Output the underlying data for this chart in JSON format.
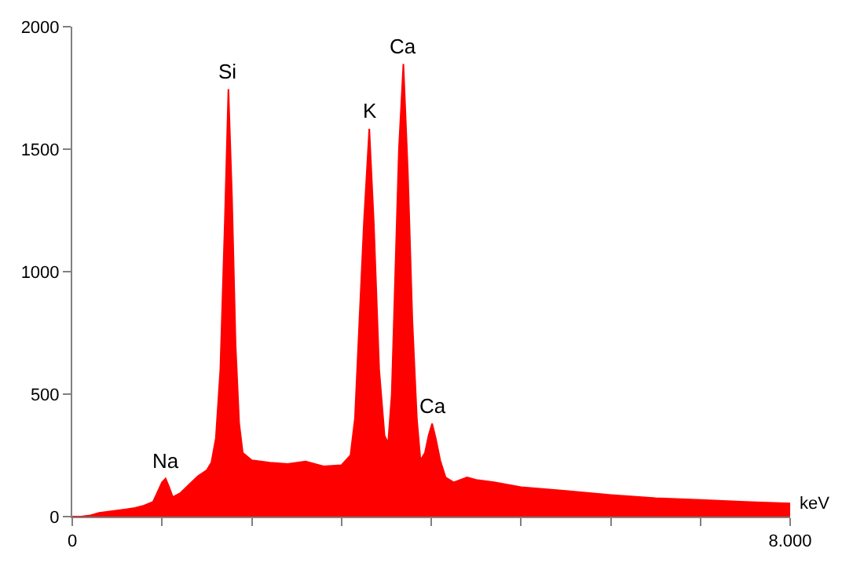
{
  "chart_data": {
    "type": "area",
    "xlabel": "keV",
    "x": [
      0,
      0.1,
      0.2,
      0.3,
      0.4,
      0.5,
      0.6,
      0.7,
      0.8,
      0.9,
      0.95,
      1.0,
      1.04,
      1.08,
      1.12,
      1.2,
      1.3,
      1.4,
      1.5,
      1.55,
      1.6,
      1.65,
      1.7,
      1.74,
      1.78,
      1.82,
      1.86,
      1.9,
      2.0,
      2.2,
      2.4,
      2.6,
      2.8,
      3.0,
      3.1,
      3.15,
      3.2,
      3.25,
      3.31,
      3.36,
      3.42,
      3.48,
      3.52,
      3.56,
      3.6,
      3.64,
      3.69,
      3.74,
      3.79,
      3.84,
      3.88,
      3.93,
      3.97,
      4.01,
      4.05,
      4.1,
      4.16,
      4.25,
      4.4,
      4.5,
      4.7,
      5.0,
      5.5,
      6.0,
      6.5,
      7.0,
      7.5,
      8.0
    ],
    "series": [
      {
        "color": "#ff0000",
        "values": [
          0,
          0,
          5,
          15,
          20,
          25,
          30,
          35,
          45,
          60,
          100,
          140,
          155,
          120,
          80,
          95,
          130,
          165,
          190,
          220,
          320,
          600,
          1200,
          1745,
          1300,
          700,
          380,
          260,
          230,
          220,
          215,
          225,
          205,
          210,
          250,
          400,
          800,
          1200,
          1583,
          1200,
          600,
          330,
          300,
          500,
          1000,
          1500,
          1848,
          1400,
          800,
          400,
          230,
          260,
          330,
          380,
          320,
          230,
          160,
          140,
          160,
          150,
          140,
          120,
          105,
          88,
          75,
          68,
          60,
          54
        ]
      }
    ],
    "xlim": [
      0,
      8
    ],
    "ylim": [
      0,
      2000
    ],
    "xticks": [
      0,
      {
        "value": 1,
        "label": null
      },
      {
        "value": 2,
        "label": null
      },
      {
        "value": 3,
        "label": null
      },
      {
        "value": 4,
        "label": null
      },
      {
        "value": 5,
        "label": null
      },
      {
        "value": 6,
        "label": null
      },
      {
        "value": 7,
        "label": null
      },
      {
        "value": 8,
        "label": "8.000"
      }
    ],
    "yticks": [
      0,
      500,
      1000,
      1500,
      2000
    ],
    "annotations": [
      {
        "text": "Na",
        "x": 1.04,
        "y": 155
      },
      {
        "text": "Si",
        "x": 1.74,
        "y": 1745
      },
      {
        "text": "K",
        "x": 3.31,
        "y": 1583
      },
      {
        "text": "Ca",
        "x": 3.69,
        "y": 1848
      },
      {
        "text": "Ca",
        "x": 4.01,
        "y": 380
      }
    ]
  }
}
